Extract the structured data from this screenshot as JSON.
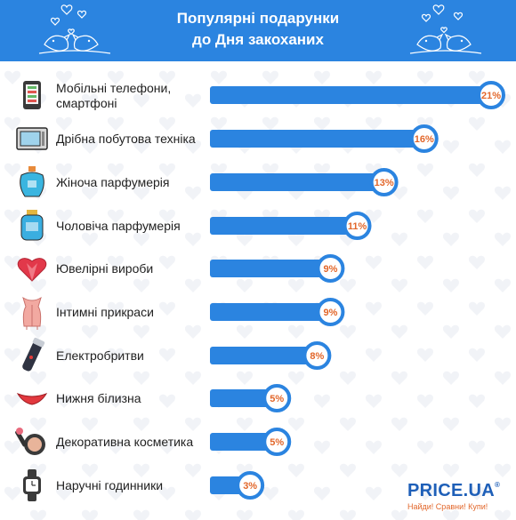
{
  "header": {
    "title_line1": "Популярні подарунки",
    "title_line2": "до Дня закоханих"
  },
  "brand": {
    "name": "PRICE.UA",
    "registered": "®",
    "tagline": "Найди! Сравни! Купи!"
  },
  "colors": {
    "banner": "#2b84e0",
    "bar": "#2b84e0",
    "percent_text": "#e2672b",
    "brand": "#1e5fb8"
  },
  "chart_data": {
    "type": "bar",
    "orientation": "horizontal",
    "unit": "%",
    "categories": [
      "Мобільні телефони, смартфоні",
      "Дрібна побутова техніка",
      "Жіноча парфумерія",
      "Чоловіча парфумерія",
      "Ювелірні вироби",
      "Інтимні прикраси",
      "Електробритви",
      "Нижня білизна",
      "Декоративна косметика",
      "Наручні годинники"
    ],
    "values": [
      21,
      16,
      13,
      11,
      9,
      9,
      8,
      5,
      5,
      3
    ],
    "labels": [
      "21%",
      "16%",
      "13%",
      "11%",
      "9%",
      "9%",
      "8%",
      "5%",
      "5%",
      "3%"
    ],
    "icons": [
      "smartphone-icon",
      "microwave-icon",
      "perfume-bottle-icon",
      "cologne-bottle-icon",
      "heart-gem-icon",
      "corset-icon",
      "shaver-icon",
      "underwear-icon",
      "makeup-compact-icon",
      "wristwatch-icon"
    ]
  }
}
